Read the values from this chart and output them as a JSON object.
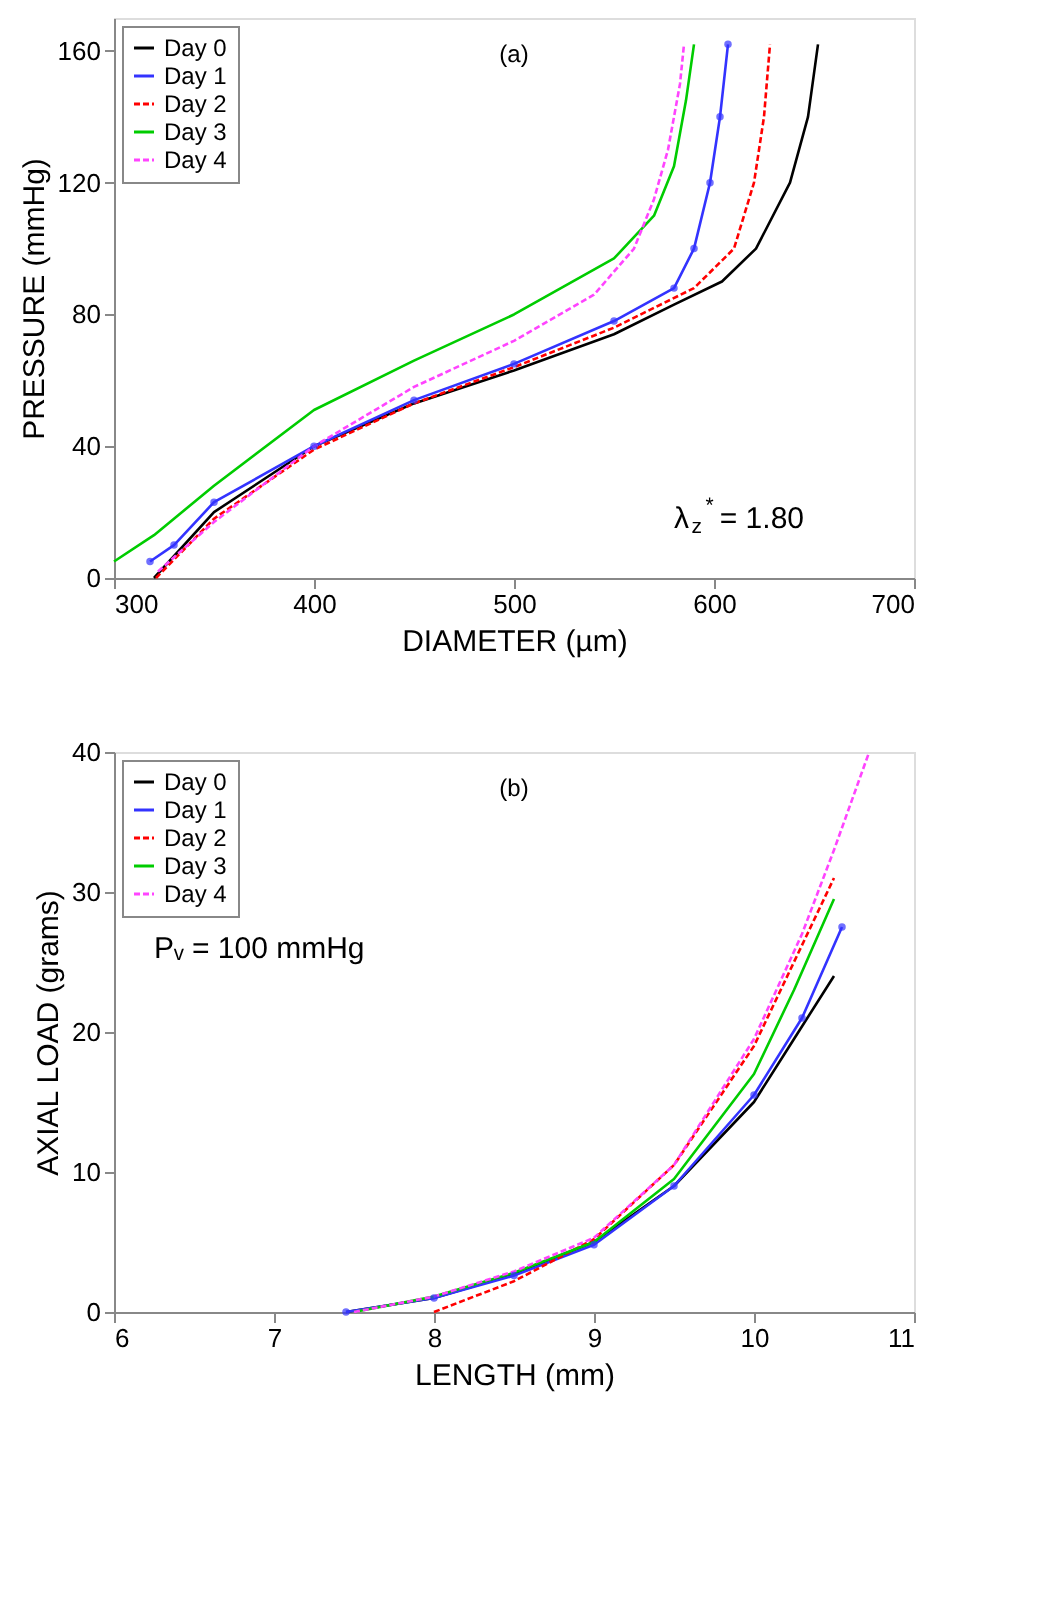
{
  "chart_data": [
    {
      "type": "line",
      "xlabel": "DIAMETER (µm)",
      "ylabel": "PRESSURE (mmHg)",
      "xlim": [
        300,
        700
      ],
      "ylim": [
        0,
        170
      ],
      "xticks": [
        300,
        400,
        500,
        600,
        700
      ],
      "yticks": [
        0,
        40,
        80,
        120,
        160
      ],
      "legend": "top left",
      "annotations": [
        "(a)",
        "λ$_{z}$$^{*}$ = 1.80"
      ],
      "series": [
        {
          "name": "Day 0",
          "color": "#000000",
          "line_style": "solid",
          "x": [
            320,
            350,
            400,
            450,
            500,
            550,
            580,
            604,
            621,
            638,
            647,
            652
          ],
          "values": [
            0,
            20,
            40,
            53,
            63,
            74,
            83,
            90,
            100,
            120,
            140,
            162
          ]
        },
        {
          "name": "Day 1",
          "color": "#3333ff",
          "line_style": "solid",
          "marker": "circle",
          "x": [
            318,
            330,
            350,
            400,
            450,
            500,
            550,
            580,
            590,
            598,
            603,
            607
          ],
          "values": [
            5,
            10,
            23,
            40,
            54,
            65,
            78,
            88,
            100,
            120,
            140,
            162
          ]
        },
        {
          "name": "Day 2",
          "color": "#ff0000",
          "line_style": "dashed",
          "x": [
            321,
            350,
            400,
            450,
            500,
            550,
            590,
            610,
            620,
            625,
            628
          ],
          "values": [
            0,
            18,
            39,
            53,
            64,
            76,
            88,
            100,
            120,
            140,
            162
          ]
        },
        {
          "name": "Day 3",
          "color": "#00cc00",
          "line_style": "solid",
          "x": [
            300,
            320,
            350,
            400,
            450,
            500,
            550,
            570,
            580,
            586,
            590
          ],
          "values": [
            5,
            13,
            28,
            51,
            66,
            80,
            97,
            110,
            125,
            145,
            162
          ]
        },
        {
          "name": "Day 4",
          "color": "#ff44ff",
          "line_style": "dashed",
          "x": [
            322,
            350,
            400,
            450,
            500,
            540,
            560,
            570,
            577,
            583,
            585
          ],
          "values": [
            2,
            17,
            40,
            58,
            72,
            86,
            100,
            115,
            130,
            150,
            162
          ]
        }
      ]
    },
    {
      "type": "line",
      "xlabel": "LENGTH (mm)",
      "ylabel": "AXIAL LOAD (grams)",
      "xlim": [
        6,
        11
      ],
      "ylim": [
        0,
        40
      ],
      "xticks": [
        6,
        7,
        8,
        9,
        10,
        11
      ],
      "yticks": [
        0,
        10,
        20,
        30,
        40
      ],
      "legend": "top left",
      "annotations": [
        "(b)",
        "Pᵥ = 100 mmHg"
      ],
      "series": [
        {
          "name": "Day 0",
          "color": "#000000",
          "line_style": "solid",
          "x": [
            7.45,
            8,
            8.5,
            9,
            9.5,
            10,
            10.25,
            10.5
          ],
          "values": [
            0,
            1,
            2.7,
            5,
            9,
            15,
            19.5,
            24
          ]
        },
        {
          "name": "Day 1",
          "color": "#3333ff",
          "line_style": "solid",
          "marker": "circle",
          "x": [
            7.45,
            8,
            8.5,
            9,
            9.5,
            10,
            10.3,
            10.55
          ],
          "values": [
            0,
            1,
            2.6,
            4.8,
            9,
            15.5,
            21,
            27.5
          ]
        },
        {
          "name": "Day 2",
          "color": "#ff0000",
          "line_style": "dashed",
          "x": [
            8,
            8.5,
            9,
            9.5,
            10,
            10.25,
            10.5
          ],
          "values": [
            0,
            2.2,
            5.2,
            10.5,
            19,
            25,
            31
          ]
        },
        {
          "name": "Day 3",
          "color": "#00cc00",
          "line_style": "solid",
          "x": [
            7.5,
            8,
            8.5,
            9,
            9.5,
            10,
            10.25,
            10.5
          ],
          "values": [
            0,
            1.1,
            2.8,
            5,
            9.5,
            17,
            23,
            29.5
          ]
        },
        {
          "name": "Day 4",
          "color": "#ff44ff",
          "line_style": "dashed",
          "x": [
            7.5,
            8,
            8.5,
            9,
            9.5,
            10,
            10.3,
            10.5,
            10.72
          ],
          "values": [
            0,
            1.1,
            2.9,
            5.3,
            10.5,
            19.5,
            27,
            33,
            40
          ]
        }
      ]
    }
  ]
}
